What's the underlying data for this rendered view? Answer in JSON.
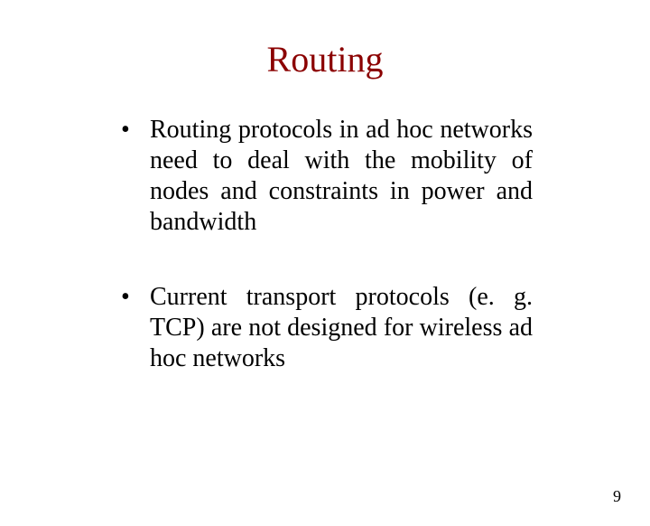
{
  "slide": {
    "title": "Routing",
    "bullets": [
      "Routing protocols in ad hoc networks need to deal with the mobility of nodes and constraints in power and bandwidth",
      "Current transport protocols (e. g. TCP) are not designed for wireless ad hoc networks"
    ],
    "page_number": "9"
  },
  "style": {
    "title_color": "#8b0000",
    "title_fontsize": 40,
    "body_color": "#000000",
    "body_fontsize": 28,
    "page_number_fontsize": 18,
    "background_color": "#ffffff",
    "font_family": "Times New Roman"
  }
}
